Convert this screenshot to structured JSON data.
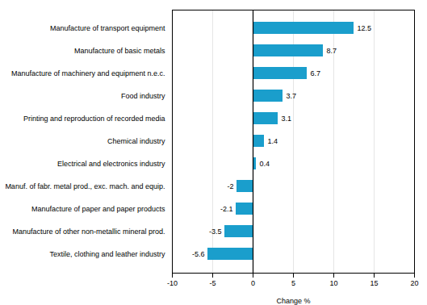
{
  "chart_data": {
    "type": "bar",
    "orientation": "horizontal",
    "categories": [
      "Textile, clothing and leather industry",
      "Manufacture of other non-metallic mineral prod.",
      "Manufacture of paper and paper products",
      "Manuf. of fabr. metal prod., exc. mach. and equip.",
      "Electrical and electronics industry",
      "Chemical industry",
      "Printing and reproduction of recorded media",
      "Food industry",
      "Manufacture of machinery and equipment n.e.c.",
      "Manufacture of basic metals",
      "Manufacture of transport equipment"
    ],
    "values": [
      -5.6,
      -3.5,
      -2.1,
      -2.0,
      0.4,
      1.4,
      3.1,
      3.7,
      6.7,
      8.7,
      12.5
    ],
    "color": "#1a9ecc",
    "xlabel": "Change %",
    "xlim": [
      -10,
      20
    ],
    "xticks": [
      -10,
      -5,
      0,
      5,
      10,
      15,
      20
    ],
    "grid": true,
    "data_labels": true
  }
}
